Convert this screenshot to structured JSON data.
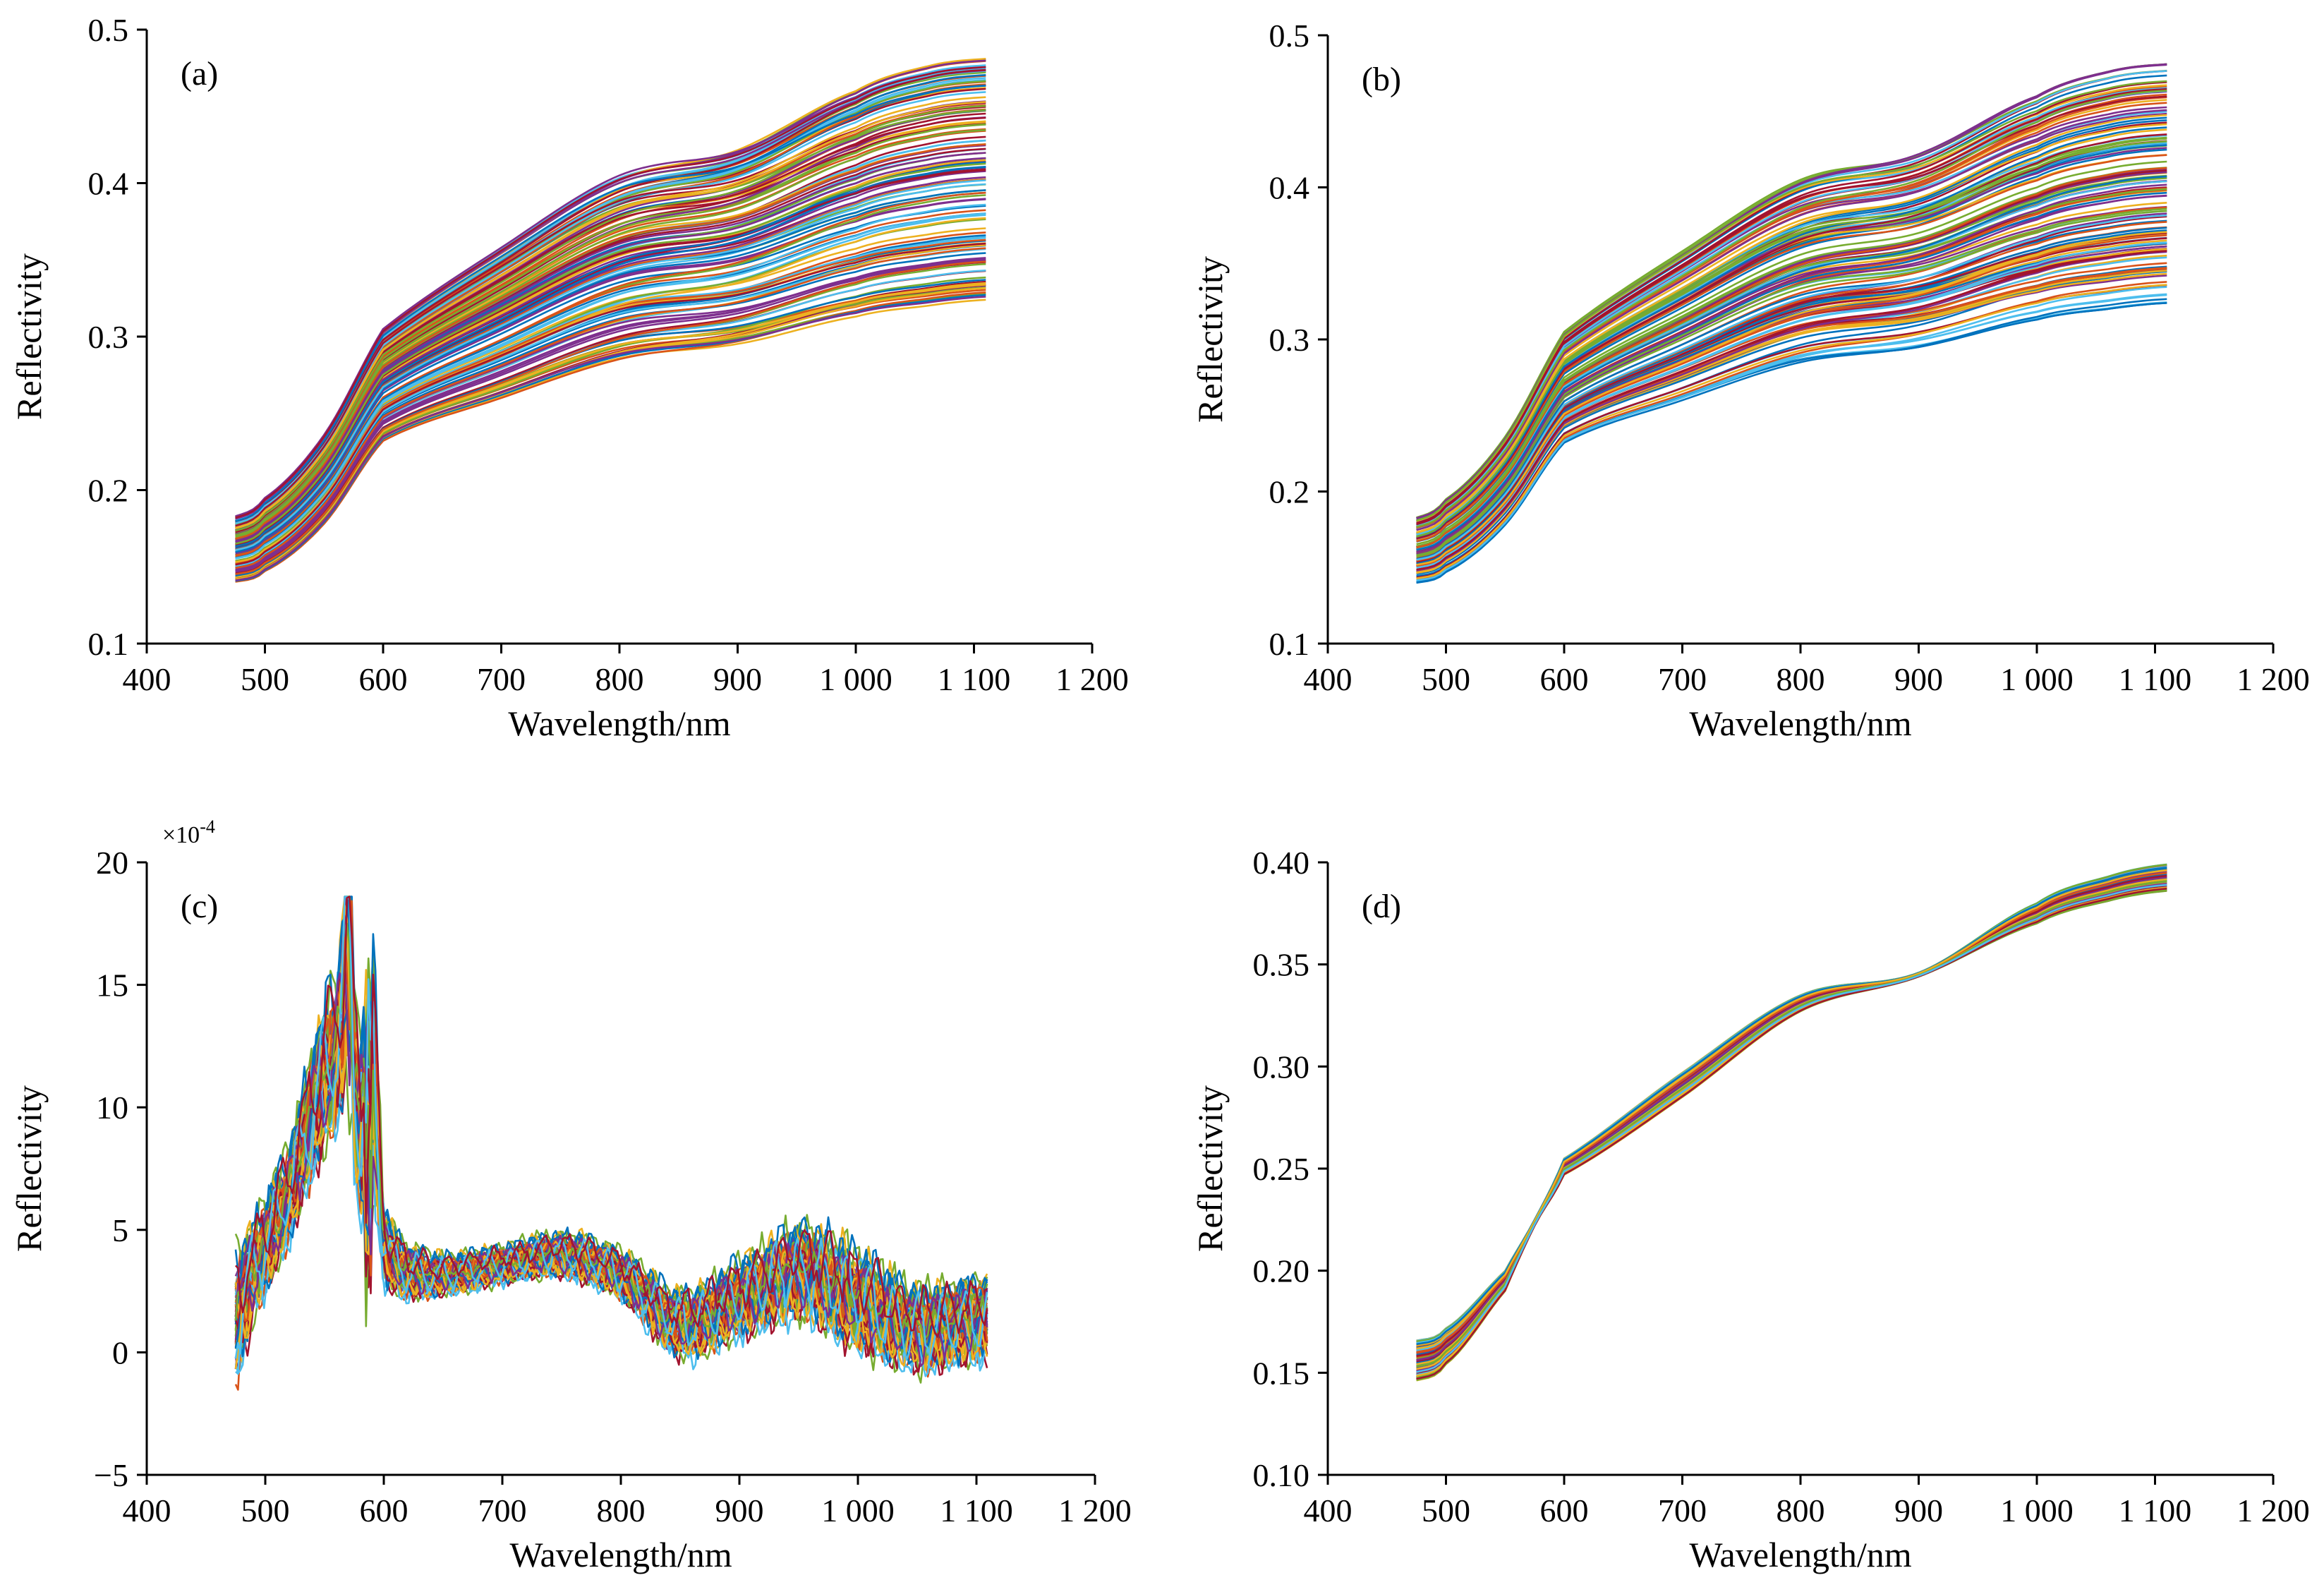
{
  "palette": [
    "#0072BD",
    "#D95319",
    "#EDB120",
    "#7E2F8E",
    "#77AC30",
    "#4DBEEE",
    "#A2142F"
  ],
  "chart_data": [
    {
      "id": "a",
      "type": "line",
      "panel_label": "(a)",
      "xlabel": "Wavelength/nm",
      "ylabel": "Reflectivity",
      "xlim": [
        400,
        1200
      ],
      "ylim": [
        0.1,
        0.5
      ],
      "xticks": [
        400,
        500,
        600,
        700,
        800,
        900,
        1000,
        1100,
        1200
      ],
      "xtick_labels": [
        "400",
        "500",
        "600",
        "700",
        "800",
        "900",
        "1 000",
        "1 100",
        "1 200"
      ],
      "yticks": [
        0.1,
        0.2,
        0.3,
        0.4,
        0.5
      ],
      "ytick_labels": [
        "0.1",
        "0.2",
        "0.3",
        "0.4",
        "0.5"
      ],
      "multiplier": "",
      "curve_count": 140,
      "series_envelope": {
        "x": [
          475,
          500,
          550,
          600,
          700,
          800,
          900,
          1000,
          1060,
          1110
        ],
        "upper": [
          0.183,
          0.195,
          0.236,
          0.305,
          0.358,
          0.405,
          0.422,
          0.46,
          0.476,
          0.481
        ],
        "lower": [
          0.14,
          0.147,
          0.178,
          0.232,
          0.26,
          0.285,
          0.295,
          0.313,
          0.32,
          0.324
        ]
      }
    },
    {
      "id": "b",
      "type": "line",
      "panel_label": "(b)",
      "xlabel": "Wavelength/nm",
      "ylabel": "Reflectivity",
      "xlim": [
        400,
        1200
      ],
      "ylim": [
        0.1,
        0.5
      ],
      "xticks": [
        400,
        500,
        600,
        700,
        800,
        900,
        1000,
        1100,
        1200
      ],
      "xtick_labels": [
        "400",
        "500",
        "600",
        "700",
        "800",
        "900",
        "1 000",
        "1 100",
        "1 200"
      ],
      "yticks": [
        0.1,
        0.2,
        0.3,
        0.4,
        0.5
      ],
      "ytick_labels": [
        "0.1",
        "0.2",
        "0.3",
        "0.4",
        "0.5"
      ],
      "multiplier": "",
      "curve_count": 140,
      "series_envelope": {
        "x": [
          475,
          500,
          550,
          600,
          700,
          800,
          900,
          1000,
          1060,
          1110
        ],
        "upper": [
          0.183,
          0.195,
          0.236,
          0.305,
          0.358,
          0.405,
          0.422,
          0.46,
          0.476,
          0.481
        ],
        "lower": [
          0.14,
          0.147,
          0.178,
          0.232,
          0.26,
          0.285,
          0.295,
          0.313,
          0.32,
          0.324
        ]
      }
    },
    {
      "id": "c",
      "type": "line",
      "panel_label": "(c)",
      "xlabel": "Wavelength/nm",
      "ylabel": "Reflectivity",
      "xlim": [
        400,
        1200
      ],
      "ylim": [
        -5,
        20
      ],
      "xticks": [
        400,
        500,
        600,
        700,
        800,
        900,
        1000,
        1100,
        1200
      ],
      "xtick_labels": [
        "400",
        "500",
        "600",
        "700",
        "800",
        "900",
        "1 000",
        "1 100",
        "1 200"
      ],
      "yticks": [
        -5,
        0,
        5,
        10,
        15,
        20
      ],
      "ytick_labels": [
        "−5",
        "0",
        "5",
        "10",
        "15",
        "20"
      ],
      "multiplier": "×10-4",
      "curve_count": 70,
      "series_envelope": {
        "x": [
          475,
          490,
          520,
          545,
          560,
          570,
          580,
          590,
          600,
          640,
          700,
          750,
          800,
          850,
          900,
          950,
          1000,
          1050,
          1110
        ],
        "mean": [
          1.5,
          3.5,
          6.5,
          10.5,
          12.5,
          14.0,
          9.5,
          12.0,
          4.5,
          3.2,
          3.6,
          4.0,
          3.2,
          1.2,
          2.2,
          3.3,
          2.2,
          1.0,
          1.5
        ],
        "spread": [
          2.5,
          1.8,
          1.8,
          2.5,
          3.0,
          3.5,
          3.5,
          4.5,
          1.5,
          0.8,
          0.7,
          0.8,
          0.9,
          1.2,
          1.4,
          1.7,
          1.8,
          1.5,
          1.5
        ]
      }
    },
    {
      "id": "d",
      "type": "line",
      "panel_label": "(d)",
      "xlabel": "Wavelength/nm",
      "ylabel": "Reflectivity",
      "xlim": [
        400,
        1200
      ],
      "ylim": [
        0.1,
        0.4
      ],
      "xticks": [
        400,
        500,
        600,
        700,
        800,
        900,
        1000,
        1100,
        1200
      ],
      "xtick_labels": [
        "400",
        "500",
        "600",
        "700",
        "800",
        "900",
        "1 000",
        "1 100",
        "1 200"
      ],
      "yticks": [
        0.1,
        0.15,
        0.2,
        0.25,
        0.3,
        0.35,
        0.4
      ],
      "ytick_labels": [
        "0.10",
        "0.15",
        "0.20",
        "0.25",
        "0.30",
        "0.35",
        "0.40"
      ],
      "multiplier": "",
      "curve_count": 90,
      "series_envelope": {
        "x": [
          475,
          500,
          550,
          575,
          600,
          700,
          800,
          900,
          1000,
          1060,
          1110
        ],
        "upper": [
          0.166,
          0.172,
          0.2,
          0.225,
          0.255,
          0.297,
          0.335,
          0.346,
          0.38,
          0.393,
          0.399
        ],
        "lower": [
          0.146,
          0.154,
          0.19,
          0.222,
          0.247,
          0.285,
          0.327,
          0.344,
          0.37,
          0.381,
          0.386
        ]
      }
    }
  ]
}
